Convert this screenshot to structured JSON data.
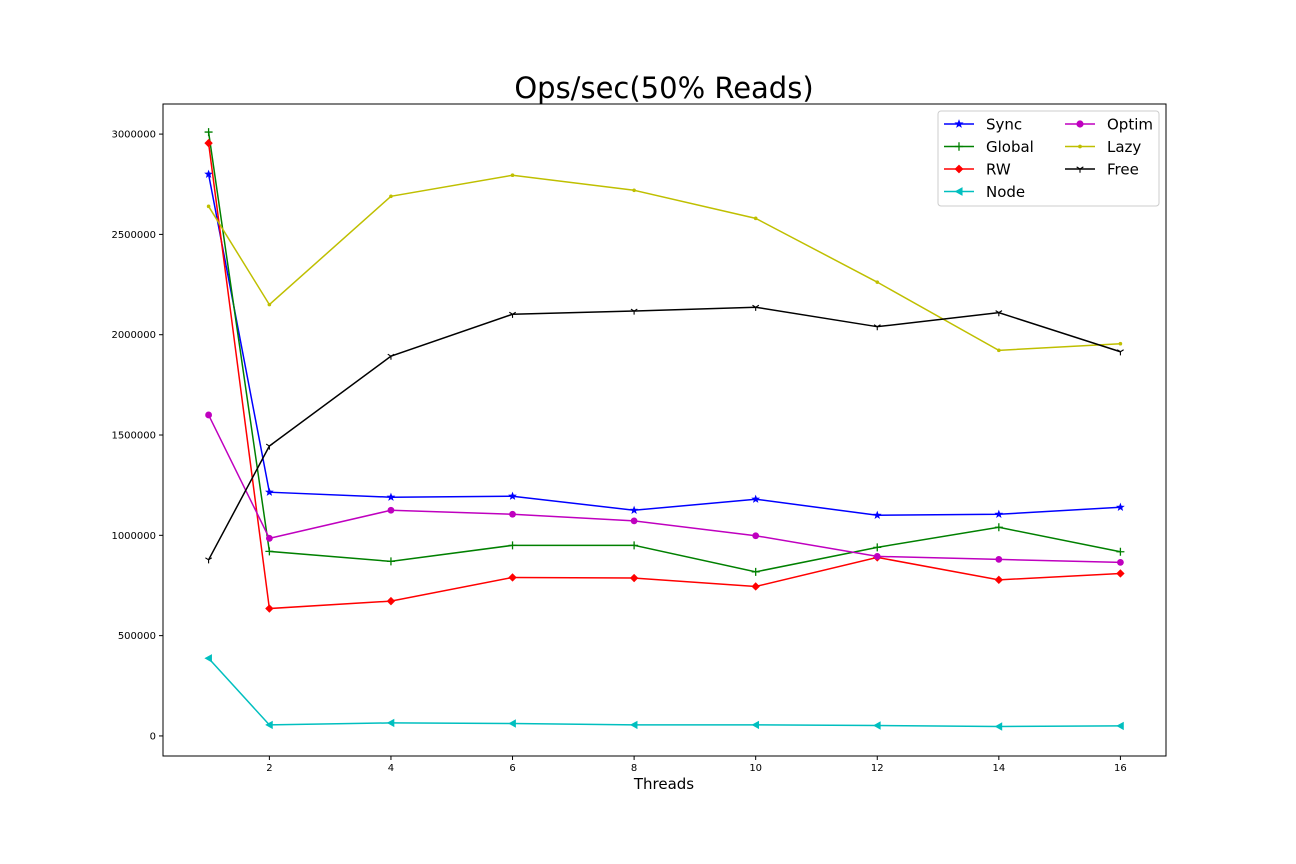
{
  "chart_data": {
    "type": "line",
    "title": "Ops/sec(50% Reads)",
    "xlabel": "Threads",
    "ylabel": "",
    "xlim": [
      0.25,
      16.75
    ],
    "ylim": [
      -100000,
      3150000
    ],
    "xticks": [
      2,
      4,
      6,
      8,
      10,
      12,
      14,
      16
    ],
    "yticks": [
      0,
      500000,
      1000000,
      1500000,
      2000000,
      2500000,
      3000000
    ],
    "grid": false,
    "legend": {
      "placement": "top-right",
      "columns": 2
    },
    "x": [
      1,
      2,
      4,
      6,
      8,
      10,
      12,
      14,
      16
    ],
    "series": [
      {
        "name": "Sync",
        "color": "#0000ff",
        "marker": "star",
        "values": [
          2800000,
          1215000,
          1190000,
          1195000,
          1125000,
          1180000,
          1100000,
          1105000,
          1140000
        ]
      },
      {
        "name": "Global",
        "color": "#008000",
        "marker": "plus",
        "values": [
          3010000,
          920000,
          870000,
          950000,
          950000,
          818000,
          940000,
          1040000,
          918000
        ]
      },
      {
        "name": "RW",
        "color": "#ff0000",
        "marker": "diamond",
        "values": [
          2955000,
          635000,
          672000,
          790000,
          787000,
          745000,
          890000,
          778000,
          810000
        ]
      },
      {
        "name": "Node",
        "color": "#00bfbf",
        "marker": "triangle-left",
        "values": [
          387000,
          55000,
          65000,
          62000,
          55000,
          55000,
          52000,
          47000,
          50000
        ]
      },
      {
        "name": "Optim",
        "color": "#bf00bf",
        "marker": "circle",
        "values": [
          1600000,
          985000,
          1125000,
          1105000,
          1072000,
          998000,
          895000,
          880000,
          865000
        ]
      },
      {
        "name": "Lazy",
        "color": "#bfbf00",
        "marker": "point",
        "values": [
          2640000,
          2150000,
          2690000,
          2795000,
          2720000,
          2580000,
          2262000,
          1922000,
          1955000
        ]
      },
      {
        "name": "Free",
        "color": "#000000",
        "marker": "tri-down",
        "values": [
          878000,
          1445000,
          1893000,
          2102000,
          2118000,
          2137000,
          2040000,
          2110000,
          1915000
        ]
      }
    ]
  }
}
